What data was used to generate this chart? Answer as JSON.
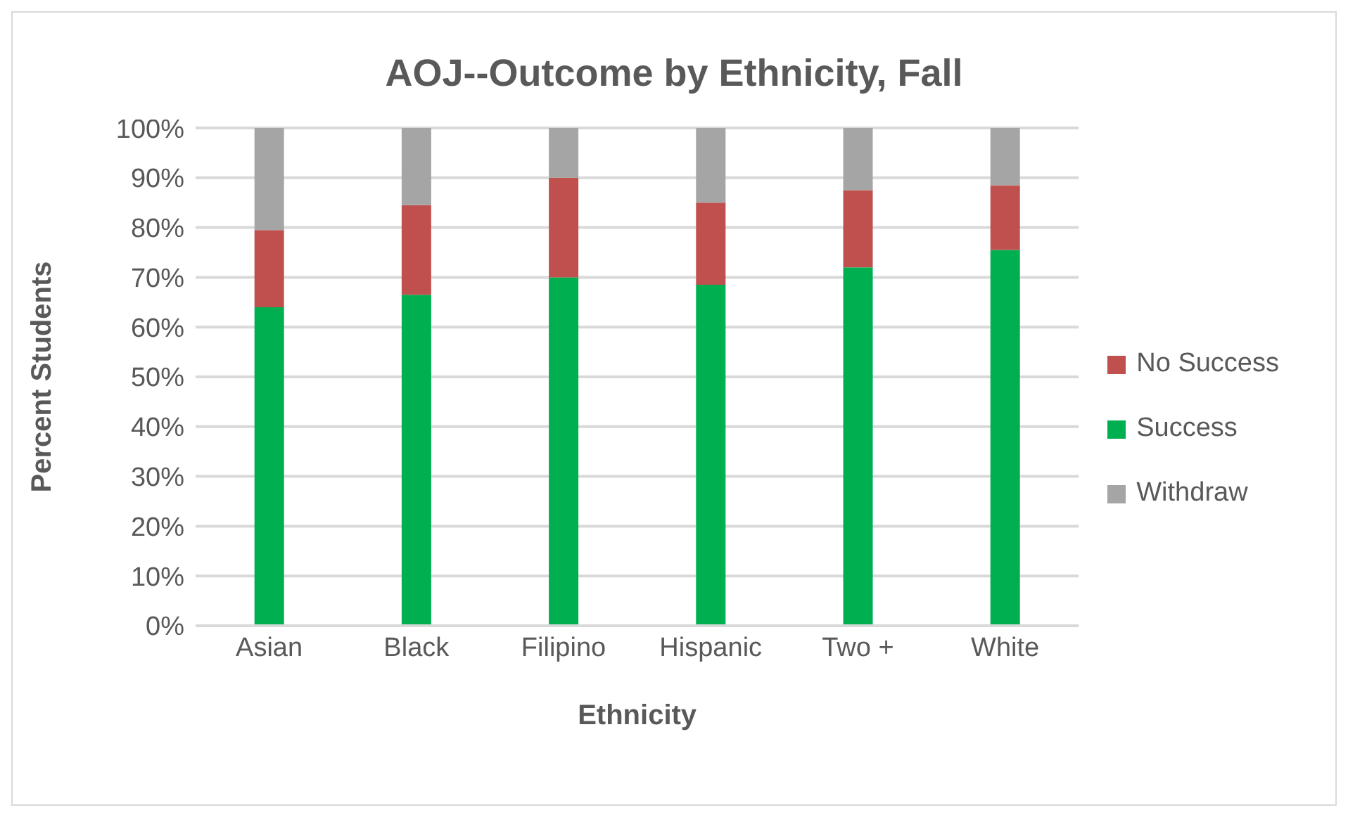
{
  "chart_data": {
    "type": "bar",
    "title": "AOJ--Outcome by Ethnicity, Fall",
    "xlabel": "Ethnicity",
    "ylabel": "Percent Students",
    "categories": [
      "Asian",
      "Black",
      "Filipino",
      "Hispanic",
      "Two +",
      "White"
    ],
    "stacked": true,
    "series": [
      {
        "name": "Success",
        "color": "#00b050",
        "values": [
          64,
          66.5,
          70,
          68.5,
          72,
          75.5
        ]
      },
      {
        "name": "No Success",
        "color": "#c0504d",
        "values": [
          15.5,
          18,
          20,
          16.5,
          15.5,
          13
        ]
      },
      {
        "name": "Withdraw",
        "color": "#a5a5a5",
        "values": [
          20.5,
          15.5,
          10,
          15,
          12.5,
          11.5
        ]
      }
    ],
    "ylim": [
      0,
      100
    ],
    "yticks": [
      {
        "value": 0,
        "label": "0%"
      },
      {
        "value": 10,
        "label": "10%"
      },
      {
        "value": 20,
        "label": "20%"
      },
      {
        "value": 30,
        "label": "30%"
      },
      {
        "value": 40,
        "label": "40%"
      },
      {
        "value": 50,
        "label": "50%"
      },
      {
        "value": 60,
        "label": "60%"
      },
      {
        "value": 70,
        "label": "70%"
      },
      {
        "value": 80,
        "label": "80%"
      },
      {
        "value": 90,
        "label": "90%"
      },
      {
        "value": 100,
        "label": "100%"
      }
    ],
    "grid": "y",
    "legend": "right"
  }
}
